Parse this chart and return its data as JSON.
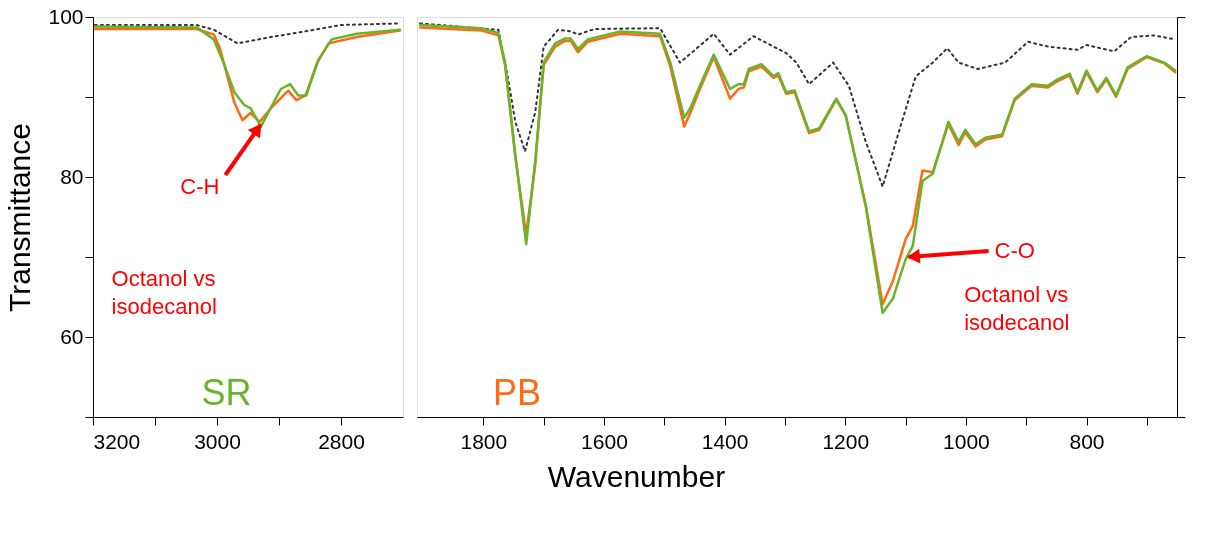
{
  "chart_data": [
    {
      "type": "line",
      "ylabel": "Transmittance",
      "xlim": [
        3200,
        2700
      ],
      "ylim": [
        50,
        100
      ],
      "xticks": [
        3200,
        {
          "value": 3100,
          "label": null
        },
        3000,
        {
          "value": 2900,
          "label": null
        },
        2800
      ],
      "yticks": [
        {
          "value": 50,
          "label": null
        },
        60,
        {
          "value": 70,
          "label": null
        },
        80,
        {
          "value": 90,
          "label": null
        },
        100
      ],
      "grid": false,
      "series": [
        {
          "color": "#333333",
          "line_style": "dotted",
          "x": [
            3197,
            3033,
            3005,
            2967,
            2913,
            2858,
            2800,
            2705
          ],
          "values": [
            99.0,
            99.0,
            98.4,
            96.7,
            97.5,
            98.2,
            99.0,
            99.2
          ]
        },
        {
          "color": "#ff6a13",
          "x": [
            3197,
            3033,
            3005,
            2995,
            2972,
            2959,
            2946,
            2931,
            2913,
            2885,
            2872,
            2857,
            2839,
            2820,
            2775,
            2705
          ],
          "values": [
            98.5,
            98.5,
            97.8,
            96.0,
            89.3,
            87.1,
            88.0,
            86.9,
            88.6,
            90.8,
            89.6,
            90.2,
            94.2,
            96.7,
            97.5,
            98.3
          ]
        },
        {
          "name": "SR",
          "color": "#6ab42d",
          "x": [
            3197,
            3033,
            3005,
            2989,
            2972,
            2956,
            2946,
            2929,
            2915,
            2897,
            2882,
            2869,
            2856,
            2836,
            2815,
            2775,
            2705
          ],
          "values": [
            98.8,
            98.7,
            97.2,
            94.2,
            90.6,
            89.0,
            88.6,
            86.3,
            88.4,
            91.0,
            91.6,
            90.2,
            90.2,
            94.7,
            97.2,
            97.9,
            98.4
          ]
        }
      ],
      "annotations": [
        {
          "text": "C-H",
          "x": 2930,
          "y": 86.5
        },
        "Octanol vs\nisodecanol"
      ]
    },
    {
      "type": "line",
      "xlabel": "Wavenumber",
      "xlim": [
        1910,
        650
      ],
      "ylim": [
        50,
        100
      ],
      "tick_labels": "x",
      "xticks": [
        1800,
        {
          "value": 1700,
          "label": null
        },
        1600,
        {
          "value": 1500,
          "label": null
        },
        1400,
        {
          "value": 1300,
          "label": null
        },
        1200,
        {
          "value": 1100,
          "label": null
        },
        1000,
        {
          "value": 900,
          "label": null
        },
        800,
        {
          "value": 700,
          "label": null
        }
      ],
      "yticks": [
        {
          "value": 50,
          "label": null
        },
        {
          "value": 60,
          "label": null
        },
        {
          "value": 70,
          "label": null
        },
        {
          "value": 80,
          "label": null
        },
        {
          "value": 90,
          "label": null
        },
        {
          "value": 100,
          "label": null
        }
      ],
      "grid": false,
      "series": [
        {
          "color": "#333333",
          "line_style": "dotted",
          "x": [
            1905,
            1775,
            1759,
            1747,
            1731,
            1714,
            1700,
            1676,
            1655,
            1643,
            1616,
            1507,
            1474,
            1418,
            1391,
            1352,
            1319,
            1298,
            1281,
            1260,
            1220,
            1194,
            1166,
            1138,
            1111,
            1083,
            1055,
            1031,
            1012,
            980,
            935,
            897,
            864,
            815,
            800,
            754,
            726,
            688,
            653
          ],
          "values": [
            99.2,
            98.4,
            92.3,
            86.9,
            83.2,
            88.1,
            96.3,
            98.4,
            98.2,
            97.8,
            98.5,
            98.6,
            94.3,
            97.9,
            95.3,
            97.6,
            96.3,
            95.5,
            94.3,
            91.6,
            94.3,
            91.4,
            84.4,
            78.8,
            85.7,
            92.6,
            94.3,
            96.1,
            94.3,
            93.5,
            94.3,
            96.9,
            96.3,
            95.9,
            96.5,
            95.7,
            97.5,
            97.7,
            97.2
          ]
        },
        {
          "name": "PB",
          "color": "#ff6a13",
          "x": [
            1905,
            1803,
            1775,
            1764,
            1747,
            1729,
            1714,
            1700,
            1681,
            1665,
            1655,
            1643,
            1627,
            1573,
            1507,
            1490,
            1467,
            1457,
            1441,
            1418,
            1391,
            1377,
            1368,
            1360,
            1339,
            1319,
            1311,
            1298,
            1284,
            1260,
            1243,
            1215,
            1199,
            1166,
            1138,
            1121,
            1100,
            1088,
            1072,
            1055,
            1029,
            1012,
            1001,
            984,
            968,
            940,
            919,
            891,
            864,
            848,
            828,
            815,
            800,
            782,
            767,
            751,
            732,
            700,
            671,
            653
          ],
          "values": [
            98.7,
            98.3,
            97.7,
            94.0,
            82.5,
            72.8,
            81.5,
            94.0,
            96.3,
            97.0,
            97.0,
            95.6,
            96.9,
            97.9,
            97.6,
            93.8,
            86.3,
            88.0,
            91.0,
            95.0,
            89.8,
            91.0,
            91.2,
            93.2,
            93.8,
            92.4,
            92.7,
            90.4,
            90.6,
            85.5,
            85.9,
            89.7,
            87.6,
            76.5,
            64.1,
            67.0,
            72.2,
            73.9,
            80.8,
            80.6,
            86.6,
            84.0,
            85.6,
            83.8,
            84.7,
            85.1,
            89.6,
            91.4,
            91.2,
            92.0,
            92.7,
            90.4,
            93.1,
            90.6,
            92.2,
            90.0,
            93.5,
            95.0,
            94.2,
            93.1
          ]
        },
        {
          "color": "#6ab42d",
          "x": [
            1905,
            1803,
            1775,
            1764,
            1747,
            1729,
            1714,
            1700,
            1681,
            1665,
            1655,
            1643,
            1627,
            1573,
            1507,
            1490,
            1467,
            1457,
            1441,
            1418,
            1391,
            1377,
            1368,
            1360,
            1339,
            1319,
            1311,
            1298,
            1284,
            1260,
            1243,
            1215,
            1199,
            1166,
            1138,
            1121,
            1100,
            1088,
            1072,
            1055,
            1029,
            1012,
            1001,
            984,
            968,
            940,
            919,
            891,
            864,
            848,
            828,
            815,
            800,
            782,
            767,
            751,
            732,
            700,
            671,
            653
          ],
          "values": [
            99.0,
            98.6,
            98.0,
            94.3,
            82.8,
            71.6,
            82.0,
            94.3,
            96.7,
            97.3,
            97.3,
            96.0,
            97.2,
            98.2,
            97.9,
            94.3,
            87.4,
            88.6,
            91.4,
            95.3,
            91.0,
            91.6,
            91.6,
            93.5,
            94.1,
            92.6,
            93.0,
            90.6,
            90.8,
            85.7,
            86.1,
            89.8,
            87.7,
            76.3,
            63.0,
            64.8,
            69.7,
            71.4,
            79.5,
            80.4,
            86.9,
            84.4,
            85.9,
            84.1,
            84.9,
            85.3,
            89.8,
            91.6,
            91.4,
            92.2,
            92.9,
            90.6,
            93.3,
            90.8,
            92.4,
            90.2,
            93.7,
            95.1,
            94.3,
            93.3
          ]
        }
      ],
      "annotations": [
        {
          "text": "C-O",
          "x": 1095,
          "y": 70.0
        },
        "Octanol vs\nisodecanol"
      ]
    }
  ]
}
